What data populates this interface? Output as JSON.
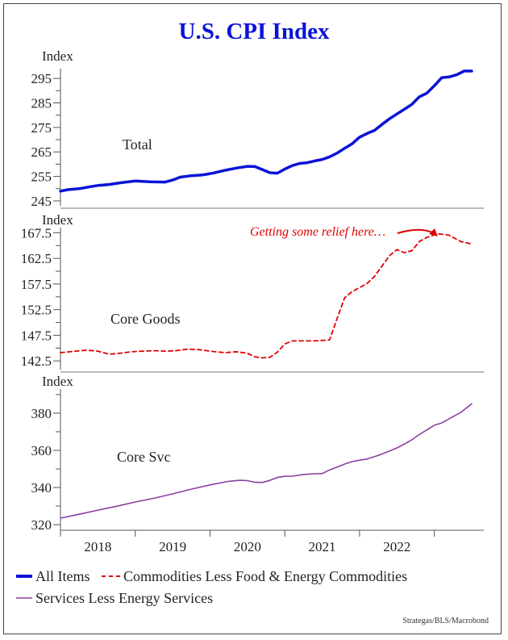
{
  "chart_data": {
    "type": "line",
    "title": "U.S. CPI Index",
    "source": "Strategas/BLS/Macrobond",
    "x_tick_labels": [
      "2018",
      "2019",
      "2020",
      "2021",
      "2022"
    ],
    "legend": [
      {
        "label": "All Items",
        "color": "#0a14d6",
        "style": "solid-thick"
      },
      {
        "label": "Commodities Less Food & Energy Commodities",
        "color": "#e00000",
        "style": "dashed"
      },
      {
        "label": "Services Less Energy Services",
        "color": "#8a3fa0",
        "style": "solid-thin"
      }
    ],
    "panels": [
      {
        "ylabel": "Index",
        "series_label": "Total",
        "color": "#0a14d6",
        "ylim": [
          243,
          299
        ],
        "y_ticks": [
          245,
          255,
          265,
          275,
          285,
          295
        ],
        "x": [
          2017.5,
          2017.6,
          2017.75,
          2017.9,
          2018.0,
          2018.15,
          2018.3,
          2018.5,
          2018.7,
          2018.9,
          2019.0,
          2019.1,
          2019.25,
          2019.4,
          2019.55,
          2019.7,
          2019.85,
          2020.0,
          2020.1,
          2020.2,
          2020.3,
          2020.4,
          2020.5,
          2020.6,
          2020.7,
          2020.8,
          2020.9,
          2021.0,
          2021.1,
          2021.2,
          2021.3,
          2021.4,
          2021.5,
          2021.6,
          2021.7,
          2021.8,
          2021.9,
          2022.0,
          2022.1,
          2022.2,
          2022.3,
          2022.4,
          2022.5,
          2022.6,
          2022.7,
          2022.8,
          2022.9,
          2023.0
        ],
        "values": [
          249,
          249.6,
          250,
          250.8,
          251.3,
          251.7,
          252.4,
          253.1,
          252.8,
          252.7,
          253.5,
          254.7,
          255.3,
          255.6,
          256.4,
          257.5,
          258.4,
          259.1,
          259.0,
          257.8,
          256.5,
          256.3,
          258.0,
          259.4,
          260.3,
          260.6,
          261.3,
          261.9,
          263.0,
          264.5,
          266.5,
          268.3,
          271.0,
          272.5,
          273.8,
          276.2,
          278.5,
          280.5,
          282.4,
          284.4,
          287.5,
          289.0,
          292.0,
          295.3,
          295.6,
          296.5,
          298.0,
          298.0
        ],
        "style": "solid-thick"
      },
      {
        "ylabel": "Index",
        "series_label": "Core Goods",
        "color": "#e00000",
        "ylim": [
          140.8,
          168.5
        ],
        "y_ticks": [
          142.5,
          147.5,
          152.5,
          157.5,
          162.5,
          167.5
        ],
        "x": [
          2017.5,
          2017.7,
          2017.85,
          2018.0,
          2018.15,
          2018.3,
          2018.45,
          2018.6,
          2018.75,
          2018.9,
          2019.05,
          2019.2,
          2019.35,
          2019.5,
          2019.7,
          2019.85,
          2020.0,
          2020.1,
          2020.2,
          2020.3,
          2020.4,
          2020.5,
          2020.6,
          2020.75,
          2020.9,
          2021.0,
          2021.1,
          2021.2,
          2021.3,
          2021.4,
          2021.5,
          2021.6,
          2021.7,
          2021.8,
          2021.9,
          2022.0,
          2022.1,
          2022.2,
          2022.3,
          2022.4,
          2022.55,
          2022.7,
          2022.85,
          2023.0
        ],
        "values": [
          144.1,
          144.4,
          144.6,
          144.4,
          143.8,
          144.0,
          144.3,
          144.4,
          144.5,
          144.4,
          144.5,
          144.8,
          144.7,
          144.4,
          144.1,
          144.3,
          144.0,
          143.3,
          143.1,
          143.2,
          144.2,
          145.8,
          146.4,
          146.4,
          146.4,
          146.5,
          146.6,
          150.8,
          154.8,
          156.0,
          156.8,
          157.6,
          159.0,
          161.0,
          163.0,
          164.2,
          163.6,
          164.0,
          165.8,
          166.6,
          167.3,
          167.0,
          165.8,
          165.3
        ],
        "style": "dashed",
        "annotation": "Getting some relief here…"
      },
      {
        "ylabel": "Index",
        "series_label": "Core Svc",
        "color": "#8a3fa0",
        "ylim": [
          317,
          393
        ],
        "y_ticks": [
          320,
          340,
          360,
          380
        ],
        "x": [
          2017.5,
          2017.75,
          2018.0,
          2018.25,
          2018.5,
          2018.75,
          2019.0,
          2019.25,
          2019.5,
          2019.75,
          2019.9,
          2020.0,
          2020.1,
          2020.2,
          2020.3,
          2020.4,
          2020.5,
          2020.6,
          2020.75,
          2020.9,
          2021.0,
          2021.1,
          2021.2,
          2021.3,
          2021.4,
          2021.5,
          2021.6,
          2021.75,
          2021.9,
          2022.0,
          2022.1,
          2022.2,
          2022.3,
          2022.4,
          2022.5,
          2022.6,
          2022.7,
          2022.85,
          2023.0
        ],
        "values": [
          323.5,
          325.6,
          327.8,
          329.9,
          332.2,
          334.2,
          336.6,
          339.1,
          341.4,
          343.3,
          343.9,
          343.7,
          342.8,
          342.7,
          343.8,
          345.4,
          346.0,
          346.1,
          347.0,
          347.4,
          347.5,
          349.5,
          351.0,
          352.6,
          353.9,
          354.7,
          355.3,
          357.3,
          359.6,
          361.3,
          363.4,
          365.7,
          368.5,
          371.0,
          373.5,
          374.7,
          377.0,
          380.3,
          385.0
        ],
        "style": "solid-thin"
      }
    ]
  }
}
